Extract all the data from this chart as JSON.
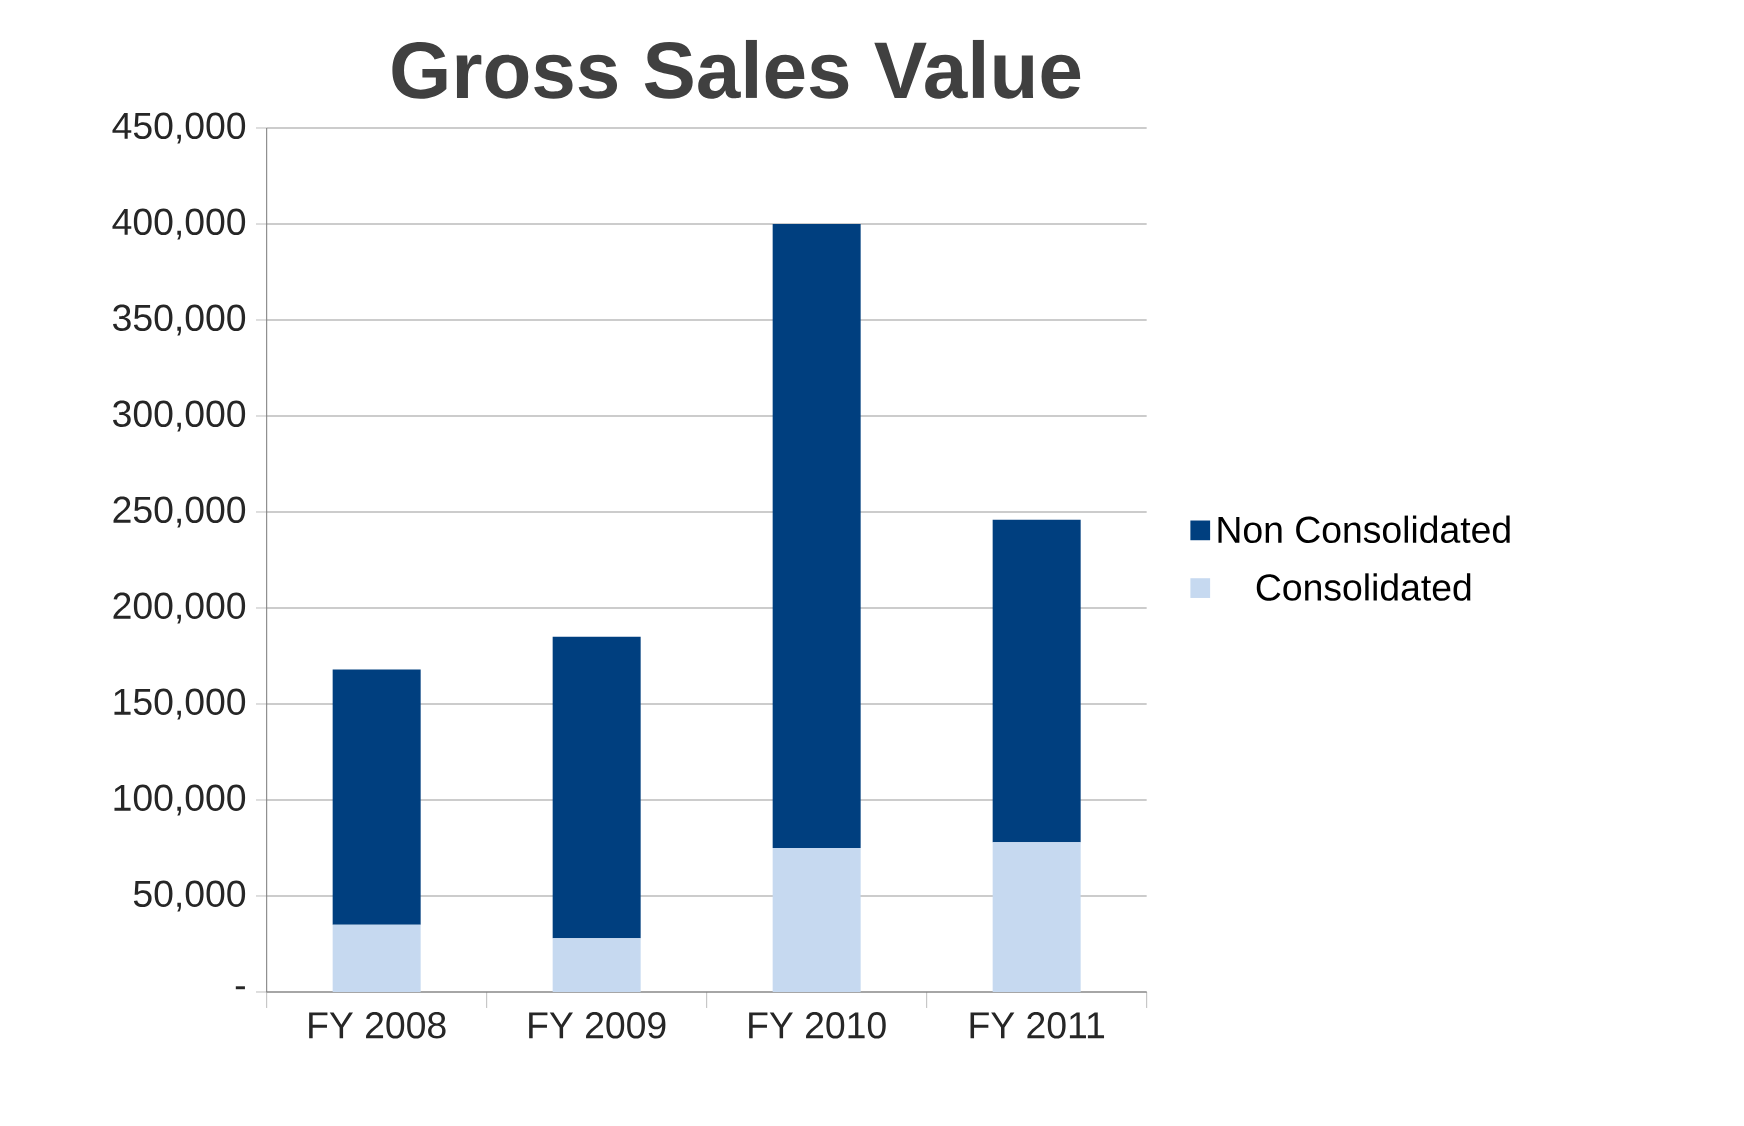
{
  "chart_data": {
    "type": "bar",
    "title": "Gross Sales Value",
    "stacked": true,
    "categories": [
      "FY 2008",
      "FY 2009",
      "FY 2010",
      "FY 2011"
    ],
    "series": [
      {
        "name": "Consolidated",
        "color": "#c6d9f0",
        "values": [
          35000,
          28000,
          75000,
          78000
        ]
      },
      {
        "name": "Non Consolidated",
        "color": "#003f7f",
        "values": [
          133000,
          157000,
          325000,
          168000
        ]
      }
    ],
    "ylim": [
      0,
      450000
    ],
    "yticks": [
      {
        "value": 0,
        "label": "-"
      },
      {
        "value": 50000,
        "label": "50,000"
      },
      {
        "value": 100000,
        "label": "100,000"
      },
      {
        "value": 150000,
        "label": "150,000"
      },
      {
        "value": 200000,
        "label": "200,000"
      },
      {
        "value": 250000,
        "label": "250,000"
      },
      {
        "value": 300000,
        "label": "300,000"
      },
      {
        "value": 350000,
        "label": "350,000"
      },
      {
        "value": 400000,
        "label": "400,000"
      },
      {
        "value": 450000,
        "label": "450,000"
      }
    ],
    "grid": "y",
    "legend": "right"
  }
}
